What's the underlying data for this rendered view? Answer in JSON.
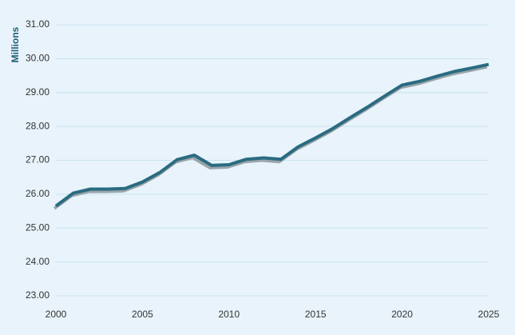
{
  "chart_data": {
    "type": "line",
    "y_label": "Millions",
    "x": [
      2000,
      2001,
      2002,
      2003,
      2004,
      2005,
      2006,
      2007,
      2008,
      2009,
      2010,
      2011,
      2012,
      2013,
      2014,
      2015,
      2016,
      2017,
      2018,
      2019,
      2020,
      2021,
      2022,
      2023,
      2024,
      2025
    ],
    "series": [
      {
        "color": "#2a6b80",
        "values": [
          25.65,
          26.03,
          26.15,
          26.15,
          26.17,
          26.36,
          26.64,
          27.02,
          27.15,
          26.85,
          26.87,
          27.03,
          27.07,
          27.03,
          27.4,
          27.66,
          27.94,
          28.26,
          28.57,
          28.9,
          29.22,
          29.33,
          29.48,
          29.62,
          29.72,
          29.83
        ]
      }
    ],
    "xlim": [
      2000,
      2025
    ],
    "xticks": [
      2000,
      2005,
      2010,
      2015,
      2020,
      2025
    ],
    "ylim": [
      23,
      31
    ],
    "yticks": [
      {
        "value": 23,
        "label": "23.00"
      },
      {
        "value": 24,
        "label": "24.00"
      },
      {
        "value": 25,
        "label": "25.00"
      },
      {
        "value": 26,
        "label": "26.00"
      },
      {
        "value": 27,
        "label": "27.00"
      },
      {
        "value": 28,
        "label": "28.00"
      },
      {
        "value": 29,
        "label": "29.00"
      },
      {
        "value": 30,
        "label": "30.00"
      },
      {
        "value": 31,
        "label": "31.00"
      }
    ],
    "grid": true
  }
}
